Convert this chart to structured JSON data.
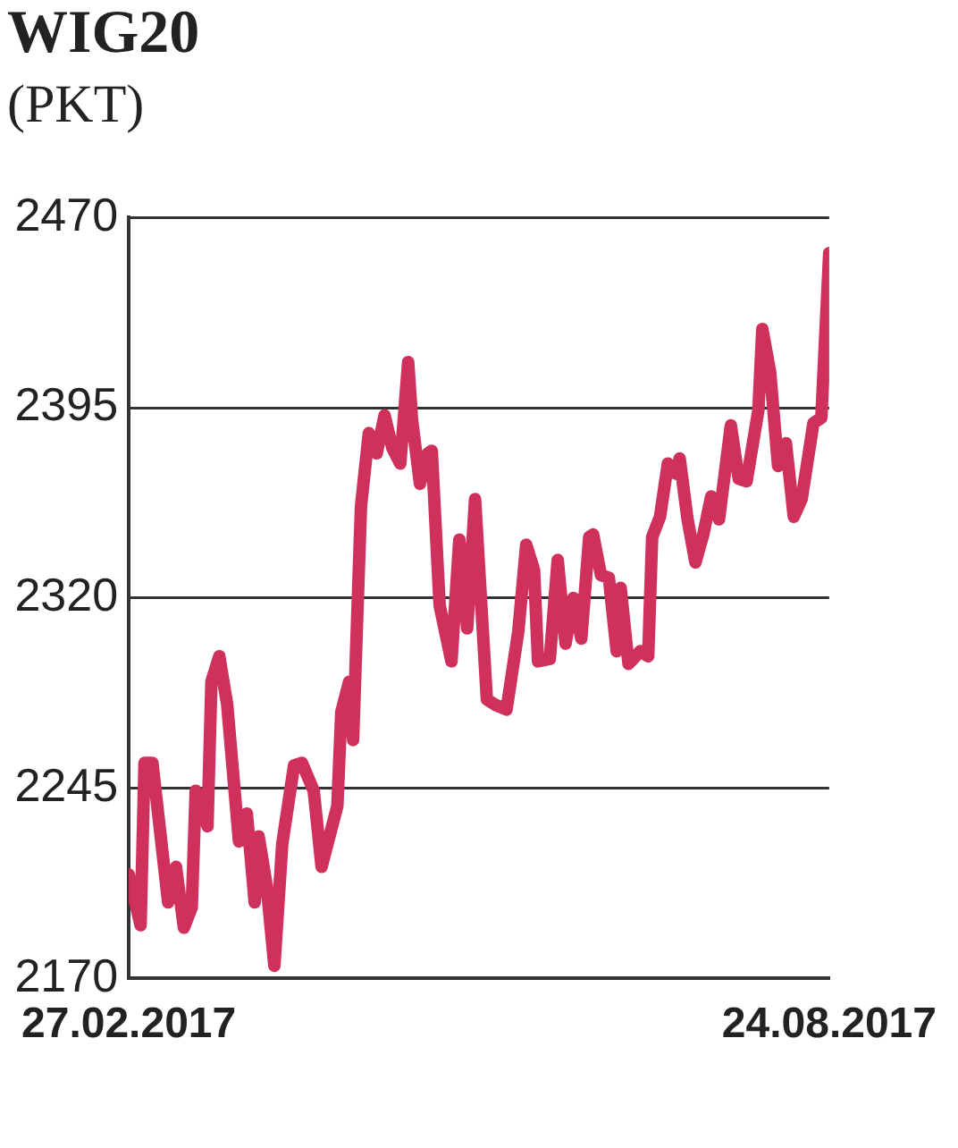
{
  "chart_data": {
    "type": "line",
    "title": "WIG20",
    "subtitle": "(PKT)",
    "x": [
      "2017-02-27",
      "2017-03-02",
      "2017-03-03",
      "2017-03-05",
      "2017-03-09",
      "2017-03-11",
      "2017-03-13",
      "2017-03-15",
      "2017-03-16",
      "2017-03-19",
      "2017-03-20",
      "2017-03-22",
      "2017-03-24",
      "2017-03-27",
      "2017-03-29",
      "2017-03-31",
      "2017-04-01",
      "2017-04-03",
      "2017-04-05",
      "2017-04-07",
      "2017-04-10",
      "2017-04-12",
      "2017-04-15",
      "2017-04-17",
      "2017-04-21",
      "2017-04-22",
      "2017-04-24",
      "2017-04-25",
      "2017-04-27",
      "2017-04-29",
      "2017-05-01",
      "2017-05-03",
      "2017-05-05",
      "2017-05-07",
      "2017-05-09",
      "2017-05-10",
      "2017-05-12",
      "2017-05-14",
      "2017-05-15",
      "2017-05-17",
      "2017-05-20",
      "2017-05-22",
      "2017-05-24",
      "2017-05-26",
      "2017-05-29",
      "2017-05-31",
      "2017-06-03",
      "2017-06-06",
      "2017-06-08",
      "2017-06-10",
      "2017-06-11",
      "2017-06-14",
      "2017-06-16",
      "2017-06-18",
      "2017-06-20",
      "2017-06-22",
      "2017-06-24",
      "2017-06-25",
      "2017-06-27",
      "2017-06-29",
      "2017-07-01",
      "2017-07-02",
      "2017-07-04",
      "2017-07-07",
      "2017-07-09",
      "2017-07-10",
      "2017-07-12",
      "2017-07-14",
      "2017-07-16",
      "2017-07-17",
      "2017-07-19",
      "2017-07-21",
      "2017-07-23",
      "2017-07-25",
      "2017-07-27",
      "2017-07-30",
      "2017-08-01",
      "2017-08-03",
      "2017-08-06",
      "2017-08-07",
      "2017-08-09",
      "2017-08-11",
      "2017-08-13",
      "2017-08-15",
      "2017-08-17",
      "2017-08-20",
      "2017-08-22",
      "2017-08-24"
    ],
    "series": [
      {
        "color": "#d0305c",
        "values": [
          2211,
          2191,
          2255,
          2255,
          2200,
          2214,
          2190,
          2198,
          2244,
          2230,
          2287,
          2297,
          2278,
          2224,
          2235,
          2200,
          2226,
          2207,
          2175,
          2223,
          2254,
          2255,
          2244,
          2214,
          2238,
          2275,
          2287,
          2264,
          2356,
          2385,
          2377,
          2392,
          2379,
          2373,
          2413,
          2390,
          2365,
          2377,
          2378,
          2317,
          2295,
          2343,
          2308,
          2359,
          2280,
          2278,
          2276,
          2307,
          2341,
          2331,
          2295,
          2296,
          2335,
          2302,
          2320,
          2304,
          2344,
          2345,
          2329,
          2328,
          2299,
          2324,
          2294,
          2299,
          2297,
          2344,
          2352,
          2373,
          2369,
          2375,
          2351,
          2334,
          2345,
          2360,
          2351,
          2388,
          2367,
          2366,
          2394,
          2426,
          2409,
          2372,
          2381,
          2352,
          2359,
          2389,
          2391,
          2456
        ]
      }
    ],
    "xlim": [
      "2017-02-27",
      "2017-08-24"
    ],
    "xticks": [
      {
        "value": "2017-02-27",
        "label": "27.02.2017"
      },
      {
        "value": "2017-08-24",
        "label": "24.08.2017"
      }
    ],
    "ylim": [
      2170,
      2470
    ],
    "yticks": [
      2170,
      2245,
      2320,
      2395,
      2470
    ],
    "grid": "y",
    "legend": false,
    "marker": "none",
    "line_style": "solid"
  }
}
